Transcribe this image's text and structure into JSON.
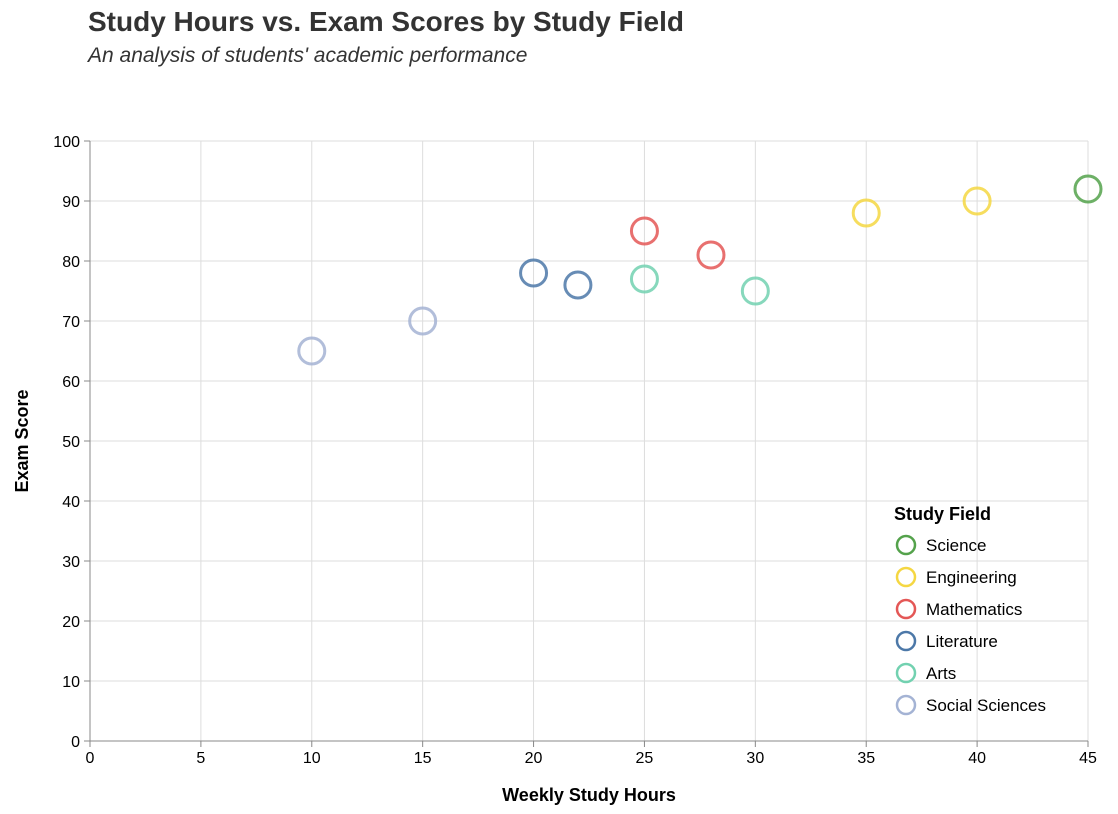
{
  "chart_data": {
    "type": "scatter",
    "title": "Study Hours vs. Exam Scores by Study Field",
    "subtitle": "An analysis of students' academic performance",
    "xlabel": "Weekly Study Hours",
    "ylabel": "Exam Score",
    "xlim": [
      0,
      45
    ],
    "ylim": [
      0,
      100
    ],
    "xticks": [
      0,
      5,
      10,
      15,
      20,
      25,
      30,
      35,
      40,
      45
    ],
    "yticks": [
      0,
      10,
      20,
      30,
      40,
      50,
      60,
      70,
      80,
      90,
      100
    ],
    "grid": true,
    "legend_title": "Study Field",
    "legend_position": "bottom-right",
    "series": [
      {
        "name": "Science",
        "color": "#54a24b",
        "points": [
          [
            45,
            92
          ]
        ]
      },
      {
        "name": "Engineering",
        "color": "#f5d742",
        "points": [
          [
            35,
            88
          ],
          [
            40,
            90
          ]
        ]
      },
      {
        "name": "Mathematics",
        "color": "#e45756",
        "points": [
          [
            25,
            85
          ],
          [
            28,
            81
          ]
        ]
      },
      {
        "name": "Literature",
        "color": "#4c78a8",
        "points": [
          [
            20,
            78
          ],
          [
            22,
            76
          ]
        ]
      },
      {
        "name": "Arts",
        "color": "#72d1b0",
        "points": [
          [
            25,
            77
          ],
          [
            30,
            75
          ]
        ]
      },
      {
        "name": "Social Sciences",
        "color": "#a4b3d4",
        "points": [
          [
            10,
            65
          ],
          [
            15,
            70
          ]
        ]
      }
    ]
  }
}
